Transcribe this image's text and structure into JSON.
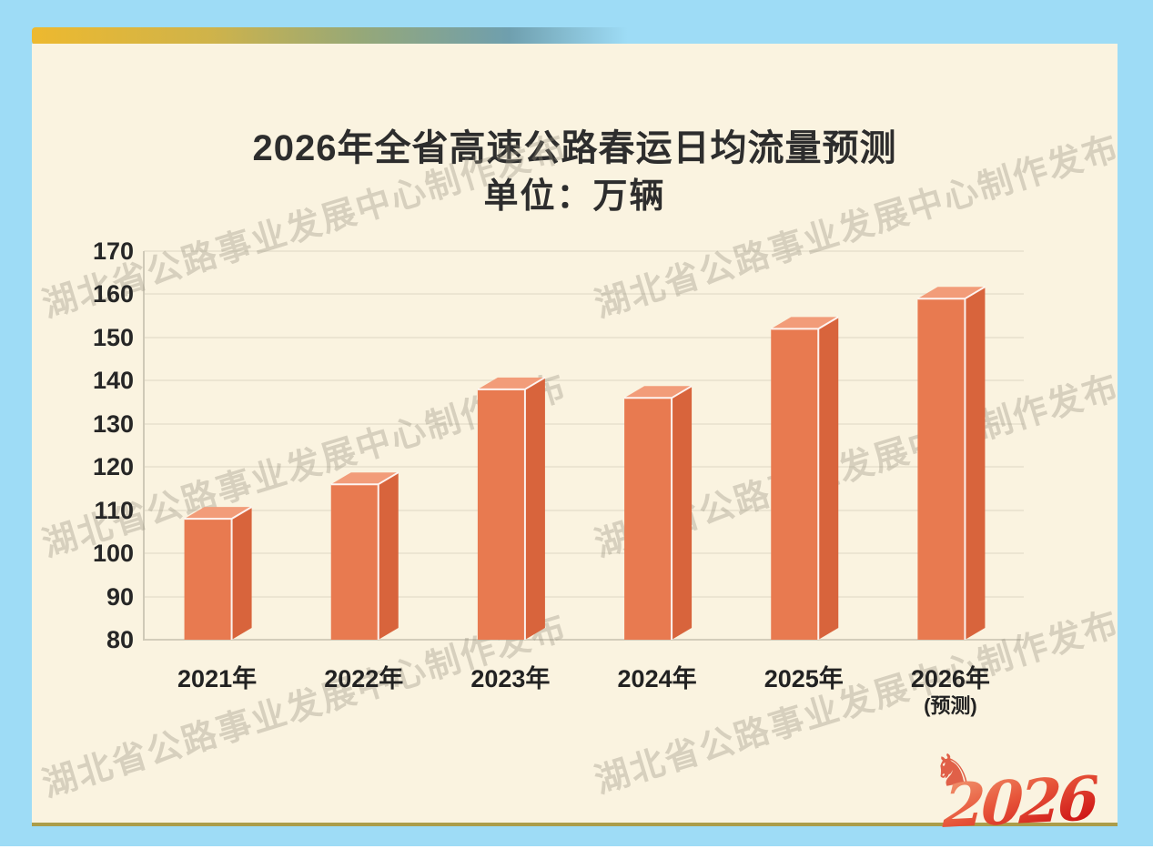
{
  "page": {
    "background_color": "#9edcf6"
  },
  "card": {
    "background_color": "#faf3e0",
    "bottom_border_color": "#ab9d4a"
  },
  "ribbon": {
    "gradient_colors": [
      "#edb92f",
      "#cfb34a",
      "#96a878",
      "#6f9fae"
    ]
  },
  "title": {
    "line1": "2026年全省高速公路春运日均流量预测",
    "line2": "单位：万辆"
  },
  "watermark": {
    "text": "湖北省公路事业发展中心制作发布"
  },
  "logo": {
    "text": "2026",
    "icon": "horse-head-icon",
    "color": "#d92b1c"
  },
  "chart_data": {
    "type": "bar",
    "title": "2026年全省高速公路春运日均流量预测",
    "subtitle": "单位：万辆",
    "unit": "万辆",
    "categories": [
      "2021年",
      "2022年",
      "2023年",
      "2024年",
      "2025年",
      "2026年"
    ],
    "last_category_note": "(预测)",
    "values": [
      108,
      116,
      138,
      136,
      152,
      159
    ],
    "ylim": [
      80,
      170
    ],
    "yticks": [
      80,
      90,
      100,
      110,
      120,
      130,
      140,
      150,
      160,
      170
    ],
    "grid": true,
    "legend": false,
    "bar_colors": {
      "front": "#e87a50",
      "top": "#f29c79",
      "side": "#d8643c"
    },
    "gridline_color": "#ece5d2",
    "baseline_color": "#d3cdbb"
  }
}
